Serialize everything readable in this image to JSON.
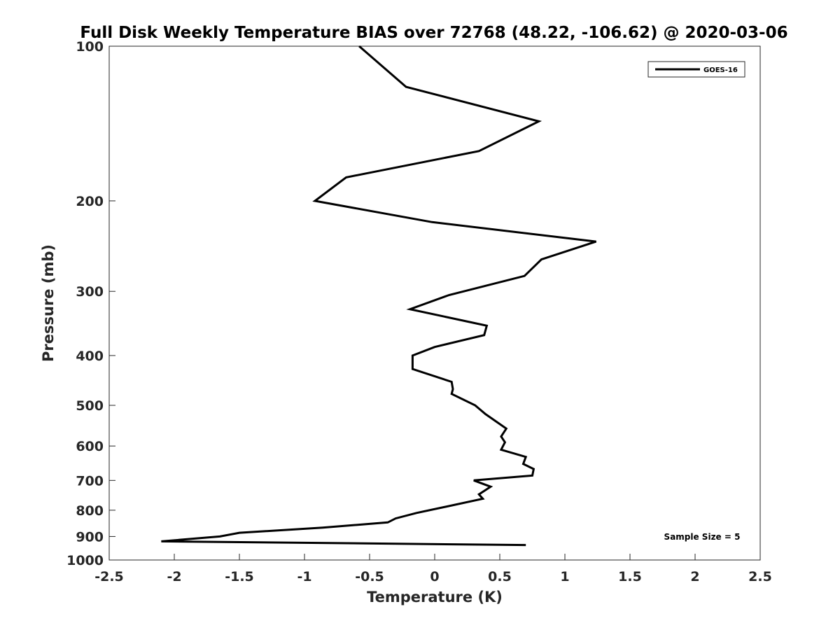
{
  "chart_data": {
    "type": "line",
    "title": "Full Disk Weekly Temperature BIAS over 72768 (48.22, -106.62) @ 2020-03-06",
    "xlabel": "Temperature (K)",
    "ylabel": "Pressure (mb)",
    "xlim": [
      -2.5,
      2.5
    ],
    "ylim": [
      100,
      1000
    ],
    "y_scale": "log",
    "y_reversed": true,
    "x_ticks": [
      -2.5,
      -2,
      -1.5,
      -1,
      -0.5,
      0,
      0.5,
      1,
      1.5,
      2,
      2.5
    ],
    "x_tick_labels": [
      "-2.5",
      "-2",
      "-1.5",
      "-1",
      "-0.5",
      "0",
      "0.5",
      "1",
      "1.5",
      "2",
      "2.5"
    ],
    "y_ticks": [
      100,
      200,
      300,
      400,
      500,
      600,
      700,
      800,
      900,
      1000
    ],
    "y_tick_labels": [
      "100",
      "200",
      "300",
      "400",
      "500",
      "600",
      "700",
      "800",
      "900",
      "1000"
    ],
    "grid": false,
    "legend_position": "top-right",
    "annotation": "Sample Size = 5",
    "series": [
      {
        "name": "GOES-16",
        "color": "#000000",
        "points": [
          {
            "x": -0.58,
            "y": 100
          },
          {
            "x": -0.22,
            "y": 120
          },
          {
            "x": 0.8,
            "y": 140
          },
          {
            "x": 0.34,
            "y": 160
          },
          {
            "x": -0.68,
            "y": 180
          },
          {
            "x": -0.92,
            "y": 200
          },
          {
            "x": -0.02,
            "y": 220
          },
          {
            "x": 1.24,
            "y": 240
          },
          {
            "x": 0.82,
            "y": 260
          },
          {
            "x": 0.69,
            "y": 280
          },
          {
            "x": 0.11,
            "y": 305
          },
          {
            "x": -0.19,
            "y": 325
          },
          {
            "x": 0.4,
            "y": 350
          },
          {
            "x": 0.38,
            "y": 365
          },
          {
            "x": 0.0,
            "y": 385
          },
          {
            "x": -0.17,
            "y": 400
          },
          {
            "x": -0.17,
            "y": 425
          },
          {
            "x": 0.13,
            "y": 450
          },
          {
            "x": 0.14,
            "y": 465
          },
          {
            "x": 0.13,
            "y": 475
          },
          {
            "x": 0.31,
            "y": 500
          },
          {
            "x": 0.39,
            "y": 520
          },
          {
            "x": 0.55,
            "y": 555
          },
          {
            "x": 0.51,
            "y": 575
          },
          {
            "x": 0.54,
            "y": 590
          },
          {
            "x": 0.51,
            "y": 610
          },
          {
            "x": 0.7,
            "y": 630
          },
          {
            "x": 0.68,
            "y": 650
          },
          {
            "x": 0.76,
            "y": 665
          },
          {
            "x": 0.75,
            "y": 685
          },
          {
            "x": 0.3,
            "y": 700
          },
          {
            "x": 0.43,
            "y": 720
          },
          {
            "x": 0.34,
            "y": 745
          },
          {
            "x": 0.37,
            "y": 760
          },
          {
            "x": 0.06,
            "y": 790
          },
          {
            "x": -0.14,
            "y": 810
          },
          {
            "x": -0.3,
            "y": 830
          },
          {
            "x": -0.36,
            "y": 845
          },
          {
            "x": -0.86,
            "y": 865
          },
          {
            "x": -1.5,
            "y": 885
          },
          {
            "x": -1.65,
            "y": 900
          },
          {
            "x": -2.1,
            "y": 920
          },
          {
            "x": 0.7,
            "y": 935
          }
        ]
      }
    ]
  }
}
